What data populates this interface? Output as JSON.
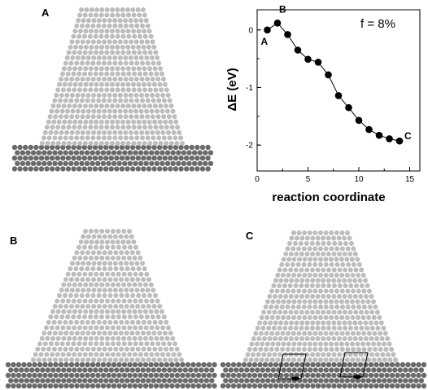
{
  "panels": {
    "a_label": "A",
    "b_label": "B",
    "c_label": "C"
  },
  "colors": {
    "film_atom": "#bdbdbd",
    "substrate_atom": "#6a6a6a",
    "marker": "#000000"
  },
  "chart_data": {
    "type": "line",
    "title": "",
    "annotation": "f = 8%",
    "xlabel": "reaction coordinate",
    "ylabel": "ΔE (eV)",
    "xlim": [
      0,
      16
    ],
    "ylim": [
      -2.45,
      0.35
    ],
    "xticks": [
      0,
      5,
      10,
      15
    ],
    "yticks": [
      0,
      -1,
      -2
    ],
    "x": [
      1,
      2,
      3,
      4,
      5,
      6,
      7,
      8,
      9,
      10,
      11,
      12,
      13,
      14
    ],
    "y": [
      0.0,
      0.12,
      -0.08,
      -0.35,
      -0.51,
      -0.56,
      -0.78,
      -1.14,
      -1.35,
      -1.57,
      -1.73,
      -1.83,
      -1.89,
      -1.93
    ],
    "point_labels": [
      {
        "index": 0,
        "text": "A"
      },
      {
        "index": 1,
        "text": "B"
      },
      {
        "index": 13,
        "text": "C"
      }
    ],
    "grid": false
  }
}
